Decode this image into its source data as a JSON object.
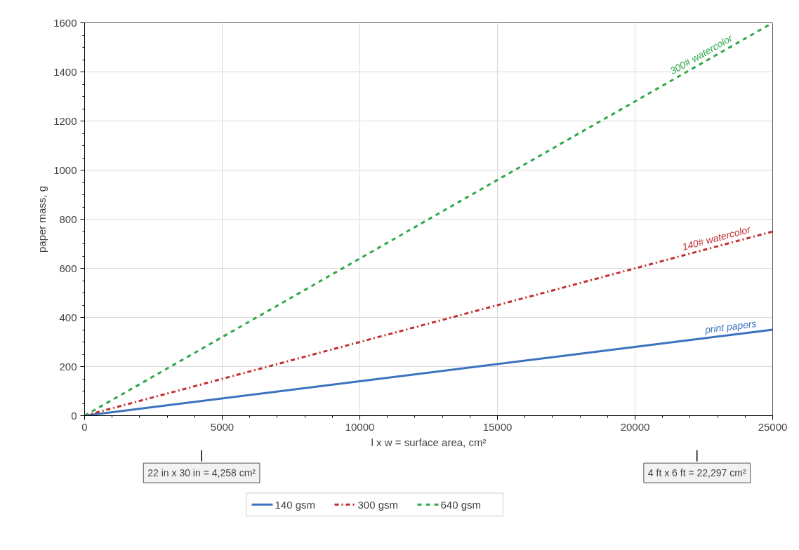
{
  "chart_data": {
    "type": "line",
    "xlabel": "l x w = surface area, cm²",
    "ylabel": "paper mass, g",
    "x": [
      0,
      25000
    ],
    "series": [
      {
        "name": "140 gsm",
        "color": "#3a72c0",
        "values": [
          0,
          350
        ],
        "line_style": "solid"
      },
      {
        "name": "300 gsm",
        "color": "#c0302f",
        "values": [
          0,
          750
        ],
        "line_style": "dashdot"
      },
      {
        "name": "640 gsm",
        "color": "#2ea84a",
        "values": [
          0,
          1600
        ],
        "line_style": "dashed"
      }
    ],
    "xlim": [
      0,
      25000
    ],
    "xticks": [
      0,
      5000,
      10000,
      15000,
      20000,
      25000
    ],
    "ylim": [
      0,
      1600
    ],
    "yticks": [
      0,
      200,
      400,
      600,
      800,
      1000,
      1200,
      1400,
      1600
    ],
    "grid": true,
    "legend": "bottom",
    "marker": "none",
    "annotations": [
      {
        "text": "print papers",
        "x": 23500,
        "y": 329
      },
      {
        "text": "140# watercolor",
        "x": 23000,
        "y": 690
      },
      {
        "text": "300# watercolor",
        "x": 22500,
        "y": 1440
      },
      "22 in x 30 in = 4,258 cm²",
      "4 ft x 6 ft = 22,297 cm²"
    ]
  }
}
